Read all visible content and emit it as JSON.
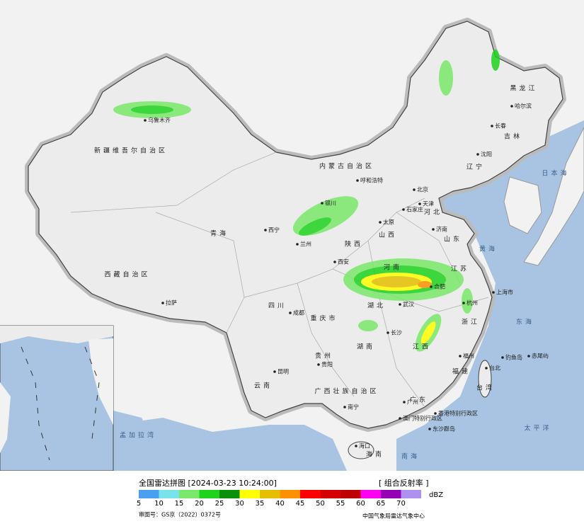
{
  "header": {
    "title": "全国雷达拼图 [2024-03-23 10:24:00]",
    "product": "[ 组合反射率 ]"
  },
  "legend": {
    "unit": "dBZ",
    "levels": [
      {
        "value": 5,
        "color": "#4a9ff0"
      },
      {
        "value": 10,
        "color": "#78e4ea"
      },
      {
        "value": 15,
        "color": "#7ae86a"
      },
      {
        "value": 20,
        "color": "#1ed21e"
      },
      {
        "value": 25,
        "color": "#0a900a"
      },
      {
        "value": 30,
        "color": "#ffff00"
      },
      {
        "value": 35,
        "color": "#e6c000"
      },
      {
        "value": 40,
        "color": "#ff9000"
      },
      {
        "value": 45,
        "color": "#ff0000"
      },
      {
        "value": 50,
        "color": "#d60000"
      },
      {
        "value": 55,
        "color": "#c00000"
      },
      {
        "value": 60,
        "color": "#ff00f0"
      },
      {
        "value": 65,
        "color": "#9600b4"
      },
      {
        "value": 70,
        "color": "#ae90f0"
      }
    ]
  },
  "footer": {
    "approval": "审图号：GS京（2022）0372号",
    "source": "中国气象局雷达气象中心"
  },
  "map": {
    "labels": [
      "乌鲁木齐",
      "新疆维吾尔自治区",
      "西藏自治区",
      "拉萨",
      "青海",
      "西宁",
      "兰州",
      "银川",
      "呼和浩特",
      "内蒙古自治区",
      "黑龙江",
      "哈尔滨",
      "长春",
      "吉林",
      "沈阳",
      "辽宁",
      "北京",
      "天津",
      "石家庄",
      "河北",
      "太原",
      "山西",
      "济南",
      "山东",
      "陕西",
      "西安",
      "河南",
      "江苏",
      "合肥",
      "上海市",
      "杭州",
      "浙江",
      "湖北",
      "武汉",
      "重庆市",
      "四川",
      "成都",
      "贵州",
      "贵阳",
      "云南",
      "昆明",
      "湖南",
      "长沙",
      "江西",
      "福州",
      "福建",
      "台北",
      "台湾",
      "广东",
      "广州",
      "广西壮族自治区",
      "南宁",
      "香港特别行政区",
      "澳门特别行政区",
      "东沙群岛",
      "海口",
      "海南",
      "日本海",
      "黄海",
      "东海",
      "太平洋",
      "南海",
      "钓鱼岛",
      "赤尾屿",
      "孟加拉湾"
    ]
  }
}
